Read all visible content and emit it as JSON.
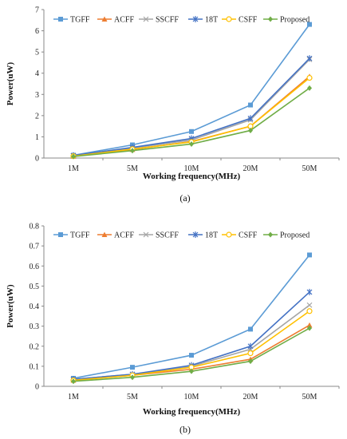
{
  "series_style": [
    {
      "color": "#5b9bd5",
      "marker": "square"
    },
    {
      "color": "#ed7d31",
      "marker": "triangle"
    },
    {
      "color": "#a5a5a5",
      "marker": "x"
    },
    {
      "color": "#4472c4",
      "marker": "star"
    },
    {
      "color": "#ffc000",
      "marker": "circle"
    },
    {
      "color": "#70ad47",
      "marker": "diamond"
    }
  ],
  "chart_data": [
    {
      "type": "line",
      "panel_label": "(a)",
      "categories": [
        "1M",
        "5M",
        "10M",
        "20M",
        "50M"
      ],
      "xlabel": "Working frequency(MHz)",
      "ylabel": "Power(uW)",
      "ylim": [
        0,
        7
      ],
      "yticks": [
        "0",
        "1",
        "2",
        "3",
        "4",
        "5",
        "6",
        "7"
      ],
      "grid": false,
      "legend_position": "top",
      "series": [
        {
          "name": "TGFF",
          "values": [
            0.13,
            0.62,
            1.25,
            2.5,
            6.3
          ]
        },
        {
          "name": "ACFF",
          "values": [
            0.08,
            0.4,
            0.78,
            1.5,
            3.85
          ]
        },
        {
          "name": "SSCFF",
          "values": [
            0.1,
            0.47,
            0.85,
            1.8,
            4.65
          ]
        },
        {
          "name": "18T",
          "values": [
            0.12,
            0.5,
            0.92,
            1.87,
            4.7
          ]
        },
        {
          "name": "CSFF",
          "values": [
            0.09,
            0.42,
            0.76,
            1.5,
            3.78
          ]
        },
        {
          "name": "Proposed",
          "values": [
            0.07,
            0.35,
            0.66,
            1.3,
            3.3
          ]
        }
      ]
    },
    {
      "type": "line",
      "panel_label": "(b)",
      "categories": [
        "1M",
        "5M",
        "10M",
        "20M",
        "50M"
      ],
      "xlabel": "Working frequency(MHz)",
      "ylabel": "Power(uW)",
      "ylim": [
        0,
        0.8
      ],
      "yticks": [
        "0",
        "0.1",
        "0.2",
        "0.3",
        "0.4",
        "0.5",
        "0.6",
        "0.7",
        "0.8"
      ],
      "grid": false,
      "legend_position": "top",
      "series": [
        {
          "name": "TGFF",
          "values": [
            0.04,
            0.095,
            0.155,
            0.285,
            0.655
          ]
        },
        {
          "name": "ACFF",
          "values": [
            0.03,
            0.055,
            0.085,
            0.135,
            0.305
          ]
        },
        {
          "name": "SSCFF",
          "values": [
            0.035,
            0.06,
            0.1,
            0.185,
            0.405
          ]
        },
        {
          "name": "18T",
          "values": [
            0.035,
            0.06,
            0.105,
            0.2,
            0.47
          ]
        },
        {
          "name": "CSFF",
          "values": [
            0.03,
            0.055,
            0.095,
            0.165,
            0.375
          ]
        },
        {
          "name": "Proposed",
          "values": [
            0.025,
            0.045,
            0.075,
            0.125,
            0.29
          ]
        }
      ]
    }
  ]
}
